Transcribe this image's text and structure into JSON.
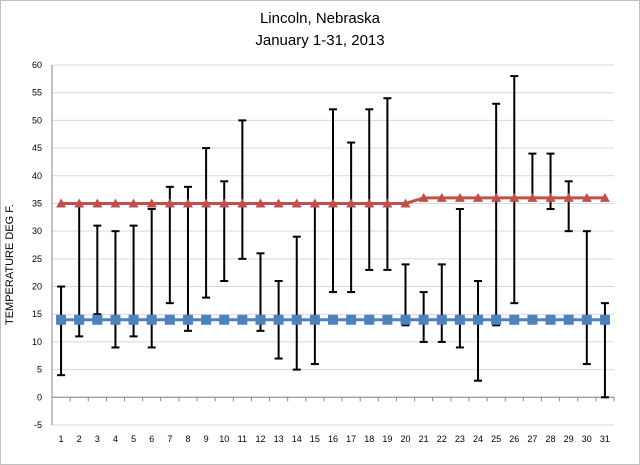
{
  "chart_data": {
    "type": "line",
    "title_lines": [
      "Lincoln, Nebraska",
      "January 1-31, 2013"
    ],
    "xlabel": "",
    "ylabel": "TEMPERATURE DEG F.",
    "ylim": [
      -5,
      60
    ],
    "ytick_step": 5,
    "yticks": [
      "-5",
      "0",
      "5",
      "10",
      "15",
      "20",
      "25",
      "30",
      "35",
      "40",
      "45",
      "50",
      "55",
      "60"
    ],
    "grid": "horizontal",
    "categories": [
      "1",
      "2",
      "3",
      "4",
      "5",
      "6",
      "7",
      "8",
      "9",
      "10",
      "11",
      "12",
      "13",
      "14",
      "15",
      "16",
      "17",
      "18",
      "19",
      "20",
      "21",
      "22",
      "23",
      "24",
      "25",
      "26",
      "27",
      "28",
      "29",
      "30",
      "31"
    ],
    "series": [
      {
        "color": "#c0504d",
        "marker": "triangle",
        "values": [
          35,
          35,
          35,
          35,
          35,
          35,
          35,
          35,
          35,
          35,
          35,
          35,
          35,
          35,
          35,
          35,
          35,
          35,
          35,
          35,
          36,
          36,
          36,
          36,
          36,
          36,
          36,
          36,
          36,
          36,
          36
        ]
      },
      {
        "color": "#4f81bd",
        "marker": "square",
        "values": [
          14,
          14,
          14,
          14,
          14,
          14,
          14,
          14,
          14,
          14,
          14,
          14,
          14,
          14,
          14,
          14,
          14,
          14,
          14,
          14,
          14,
          14,
          14,
          14,
          14,
          14,
          14,
          14,
          14,
          14,
          14
        ]
      }
    ],
    "daily_range": {
      "color": "#000000",
      "high": [
        20,
        35,
        31,
        30,
        31,
        34,
        38,
        38,
        45,
        39,
        50,
        26,
        21,
        29,
        35,
        52,
        46,
        52,
        54,
        24,
        19,
        24,
        34,
        21,
        53,
        58,
        44,
        44,
        39,
        30,
        17
      ],
      "low": [
        4,
        11,
        15,
        9,
        11,
        9,
        17,
        12,
        18,
        21,
        25,
        12,
        7,
        5,
        6,
        19,
        19,
        23,
        23,
        13,
        10,
        10,
        9,
        3,
        13,
        17,
        36,
        34,
        30,
        6,
        0
      ]
    }
  }
}
